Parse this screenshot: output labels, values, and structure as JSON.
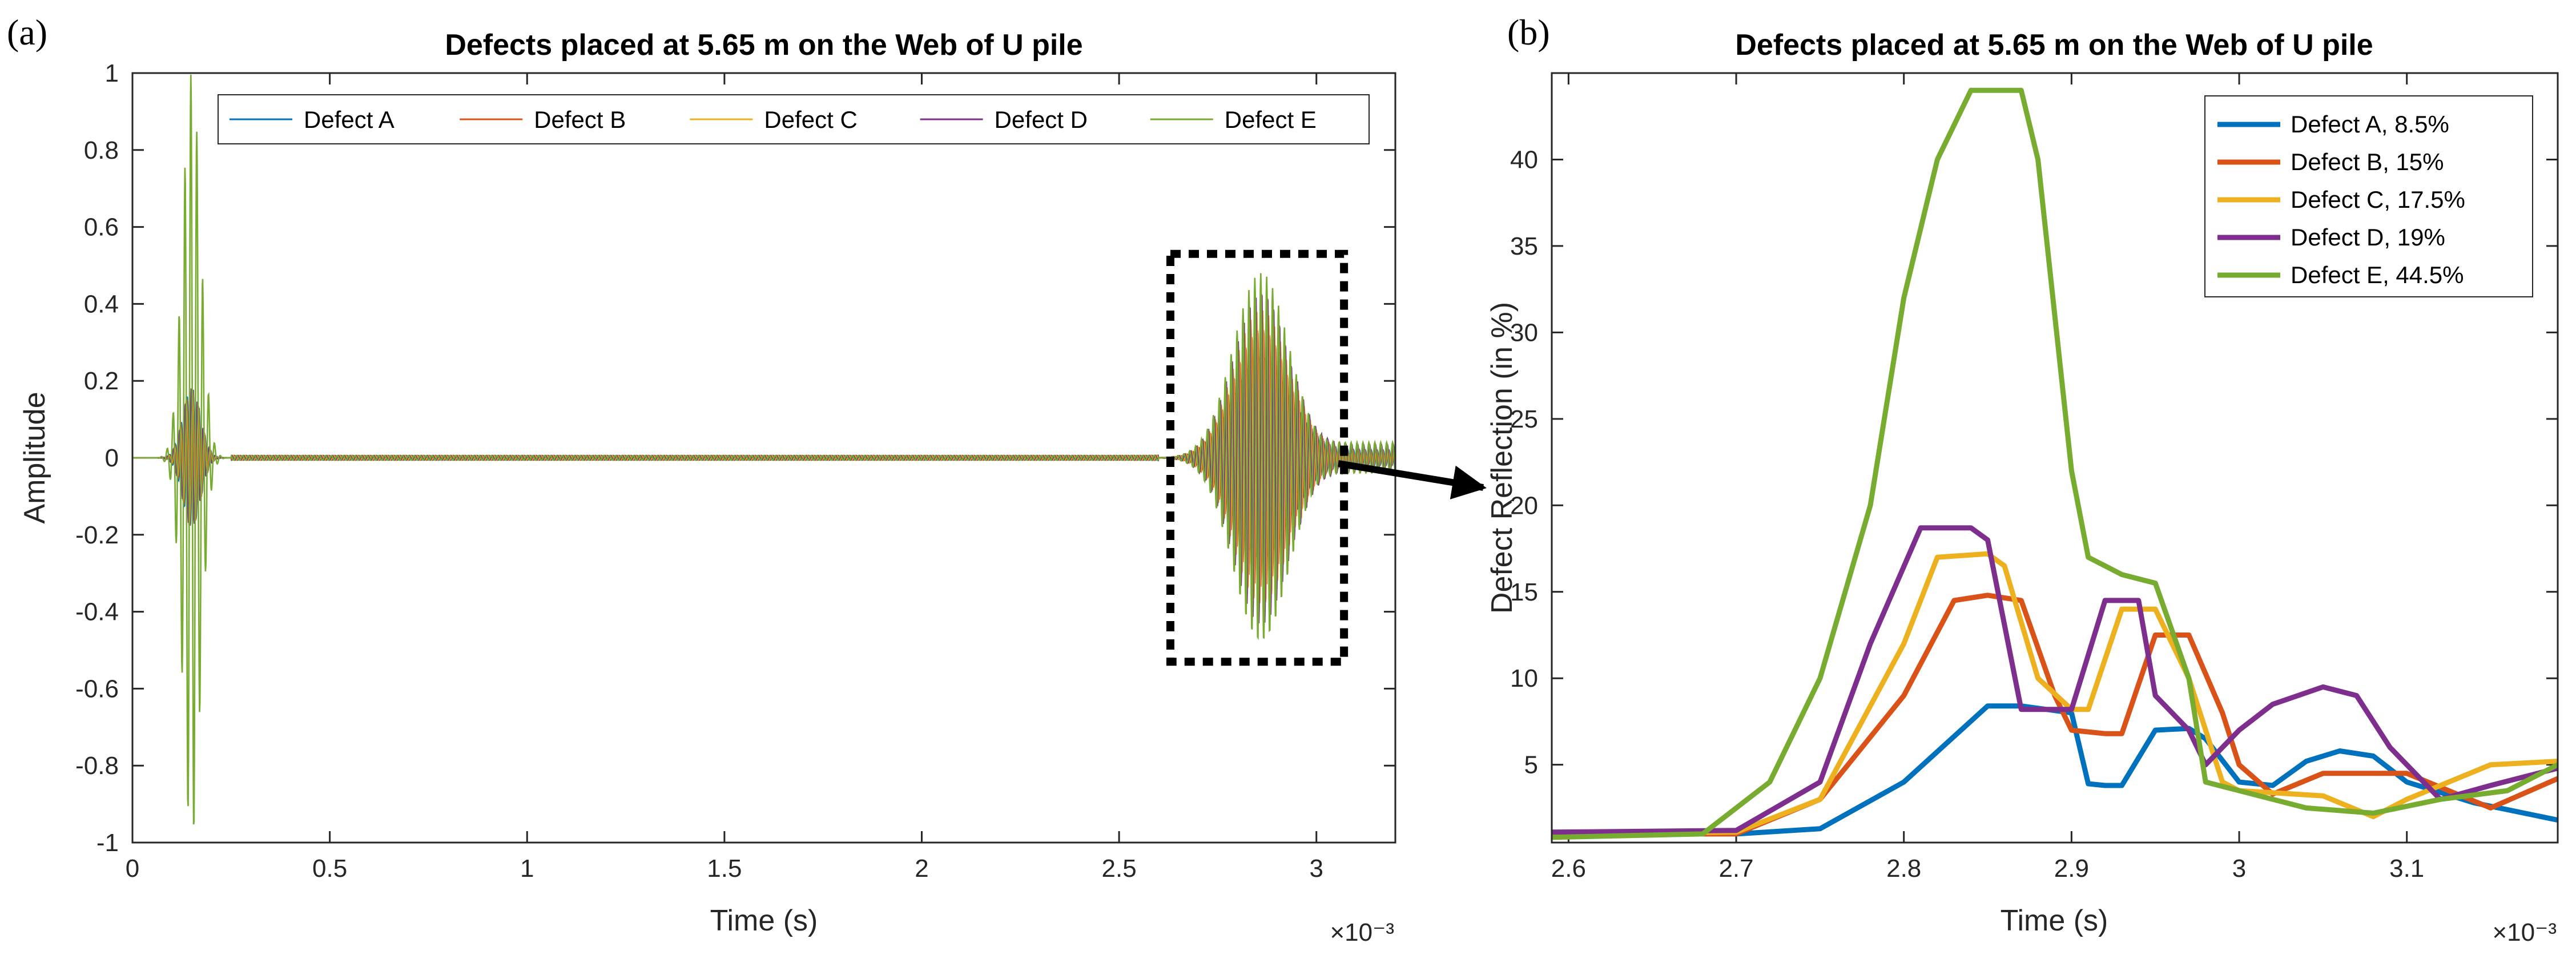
{
  "colors": {
    "defect_a": "#0072BD",
    "defect_b": "#D95319",
    "defect_c": "#EDB120",
    "defect_d": "#7E2F8E",
    "defect_e": "#77AC30"
  },
  "panel_a": {
    "label": "(a)"
  },
  "panel_b": {
    "label": "(b)"
  },
  "chart_data": [
    {
      "type": "line",
      "title": "Defects placed at 5.65 m on the Web of U pile",
      "xlabel": "Time (s)",
      "ylabel": "Amplitude",
      "x_exponent": "×10⁻³",
      "xlim": [
        0,
        3.2
      ],
      "ylim": [
        -1,
        1
      ],
      "xticks": [
        0,
        0.5,
        1,
        1.5,
        2,
        2.5,
        3
      ],
      "xtick_labels": [
        "0",
        "0.5",
        "1",
        "1.5",
        "2",
        "2.5",
        "3"
      ],
      "yticks": [
        -1,
        -0.8,
        -0.6,
        -0.4,
        -0.2,
        0,
        0.2,
        0.4,
        0.6,
        0.8,
        1
      ],
      "ytick_labels": [
        "-1",
        "-0.8",
        "-0.6",
        "-0.4",
        "-0.2",
        "0",
        "0.2",
        "0.4",
        "0.6",
        "0.8",
        "1"
      ],
      "legend": [
        "Defect A",
        "Defect B",
        "Defect C",
        "Defect D",
        "Defect E"
      ],
      "legend_position": "top",
      "annotation": "dotted box highlighting the defect echo between 2.63 and 3.07 (x10^-3 s), arrow pointing to panel (b)",
      "box_x": [
        2.63,
        3.07
      ],
      "box_y": [
        -0.53,
        0.53
      ],
      "signal_model": {
        "incident_center": 0.15,
        "incident_width": 0.032,
        "incident_amplitude": 1.0,
        "echo_center": 2.86,
        "echo_width": 0.1,
        "echo_amplitude": 0.48,
        "cycle_period": 0.015
      }
    },
    {
      "type": "line",
      "title": "Defects placed at 5.65 m on the Web of U pile",
      "xlabel": "Time (s)",
      "ylabel": "Defect Reflection (in %)",
      "x_exponent": "×10⁻³",
      "xlim": [
        2.59,
        3.19
      ],
      "ylim": [
        0.5,
        45
      ],
      "xticks": [
        2.6,
        2.7,
        2.8,
        2.9,
        3.0,
        3.1
      ],
      "xtick_labels": [
        "2.6",
        "2.7",
        "2.8",
        "2.9",
        "3",
        "3.1"
      ],
      "yticks": [
        5,
        10,
        15,
        20,
        25,
        30,
        35,
        40
      ],
      "ytick_labels": [
        "5",
        "10",
        "15",
        "20",
        "25",
        "30",
        "35",
        "40"
      ],
      "legend_position": "top-right",
      "series": [
        {
          "name": "Defect A, 8.5%",
          "x": [
            2.59,
            2.7,
            2.75,
            2.8,
            2.85,
            2.87,
            2.9,
            2.91,
            2.92,
            2.93,
            2.95,
            2.97,
            2.98,
            3.0,
            3.02,
            3.04,
            3.06,
            3.08,
            3.1,
            3.14,
            3.19
          ],
          "y": [
            1.0,
            1.0,
            1.3,
            4.0,
            8.4,
            8.4,
            8.0,
            3.9,
            3.8,
            3.8,
            7.0,
            7.1,
            6.5,
            4.0,
            3.8,
            5.2,
            5.8,
            5.5,
            4.0,
            2.8,
            1.8
          ]
        },
        {
          "name": "Defect B, 15%",
          "x": [
            2.59,
            2.7,
            2.75,
            2.8,
            2.83,
            2.85,
            2.87,
            2.89,
            2.9,
            2.92,
            2.93,
            2.95,
            2.97,
            2.99,
            3.0,
            3.02,
            3.05,
            3.1,
            3.15,
            3.19
          ],
          "y": [
            1.0,
            1.0,
            3.0,
            9.0,
            14.5,
            14.8,
            14.5,
            9.0,
            7.0,
            6.8,
            6.8,
            12.5,
            12.5,
            8.0,
            5.0,
            3.3,
            4.5,
            4.5,
            2.5,
            4.2
          ]
        },
        {
          "name": "Defect C, 17.5%",
          "x": [
            2.59,
            2.7,
            2.75,
            2.8,
            2.82,
            2.85,
            2.86,
            2.88,
            2.9,
            2.91,
            2.93,
            2.95,
            2.97,
            2.99,
            3.0,
            3.05,
            3.08,
            3.1,
            3.15,
            3.19
          ],
          "y": [
            1.0,
            1.1,
            3.0,
            12.0,
            17.0,
            17.2,
            16.5,
            10.0,
            8.2,
            8.2,
            14.0,
            14.0,
            10.0,
            4.0,
            3.5,
            3.2,
            2.0,
            3.0,
            5.0,
            5.2
          ]
        },
        {
          "name": "Defect D, 19%",
          "x": [
            2.59,
            2.7,
            2.75,
            2.78,
            2.81,
            2.84,
            2.85,
            2.87,
            2.88,
            2.9,
            2.92,
            2.94,
            2.95,
            2.97,
            2.98,
            3.0,
            3.02,
            3.05,
            3.07,
            3.09,
            3.12,
            3.15,
            3.19
          ],
          "y": [
            1.1,
            1.2,
            4.0,
            12.0,
            18.7,
            18.7,
            18.0,
            8.2,
            8.2,
            8.2,
            14.5,
            14.5,
            9.0,
            7.0,
            5.0,
            7.0,
            8.5,
            9.5,
            9.0,
            6.0,
            3.0,
            3.8,
            4.8
          ]
        },
        {
          "name": "Defect E, 44.5%",
          "x": [
            2.59,
            2.68,
            2.72,
            2.75,
            2.78,
            2.8,
            2.82,
            2.84,
            2.86,
            2.87,
            2.88,
            2.9,
            2.91,
            2.93,
            2.95,
            2.97,
            2.98,
            3.0,
            3.04,
            3.08,
            3.12,
            3.16,
            3.19
          ],
          "y": [
            0.8,
            1.0,
            4.0,
            10.0,
            20.0,
            32.0,
            40.0,
            44.0,
            44.0,
            44.0,
            40.0,
            22.0,
            17.0,
            16.0,
            15.5,
            10.0,
            4.0,
            3.5,
            2.5,
            2.2,
            3.0,
            3.5,
            5.0
          ]
        }
      ]
    }
  ]
}
